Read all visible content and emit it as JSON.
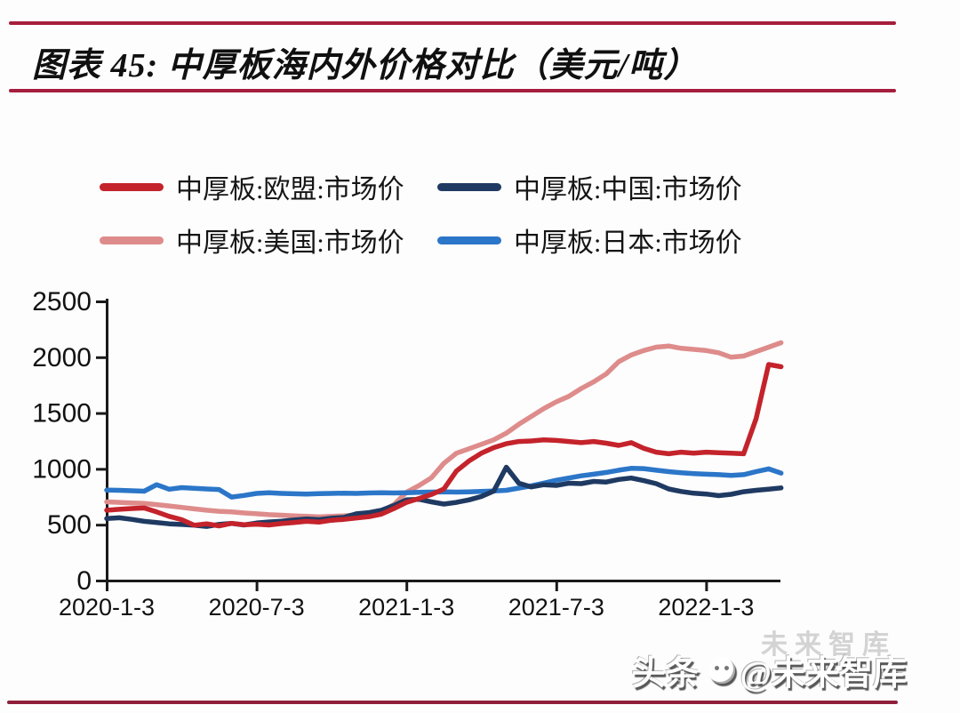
{
  "page": {
    "background": "#fdfdfe"
  },
  "header": {
    "title": "图表 45: 中厚板海内外价格对比（美元/吨）",
    "rule_color_top": "#a61e3c",
    "rule_color_mid": "#a61e3c",
    "rule_color_bottom": "#8f1f3a"
  },
  "legend": [
    {
      "id": "eu",
      "label": "中厚板:欧盟:市场价",
      "color": "#c4232b"
    },
    {
      "id": "china",
      "label": "中厚板:中国:市场价",
      "color": "#1f3a62"
    },
    {
      "id": "us",
      "label": "中厚板:美国:市场价",
      "color": "#de8c8b"
    },
    {
      "id": "japan",
      "label": "中厚板:日本:市场价",
      "color": "#2b76c8"
    }
  ],
  "chart_data": {
    "type": "line",
    "title": "中厚板海内外价格对比",
    "unit": "美元/吨",
    "xlabel": "",
    "ylabel": "",
    "ylim": [
      0,
      2500
    ],
    "y_ticks": [
      0,
      500,
      1000,
      1500,
      2000,
      2500
    ],
    "x_tick_labels": [
      "2020-1-3",
      "2020-7-3",
      "2021-1-3",
      "2021-7-3",
      "2022-1-3"
    ],
    "x_tick_positions_months": [
      0,
      6,
      12,
      18,
      24
    ],
    "x_axis_note": "x values are months since 2020-01-03, weekly-style series sampled every half month",
    "grid": false,
    "legend_position": "top",
    "x": [
      0,
      0.5,
      1,
      1.5,
      2,
      2.5,
      3,
      3.5,
      4,
      4.5,
      5,
      5.5,
      6,
      6.5,
      7,
      7.5,
      8,
      8.5,
      9,
      9.5,
      10,
      10.5,
      11,
      11.5,
      12,
      12.5,
      13,
      13.5,
      14,
      14.5,
      15,
      15.5,
      16,
      16.5,
      17,
      17.5,
      18,
      18.5,
      19,
      19.5,
      20,
      20.5,
      21,
      21.5,
      22,
      22.5,
      23,
      23.5,
      24,
      24.5,
      25,
      25.5,
      26,
      26.5,
      27
    ],
    "series": [
      {
        "id": "eu",
        "name": "中厚板:欧盟:市场价",
        "color": "#c4232b",
        "values": [
          630,
          638,
          645,
          650,
          615,
          575,
          545,
          495,
          508,
          490,
          512,
          500,
          505,
          498,
          510,
          520,
          530,
          523,
          540,
          548,
          560,
          572,
          595,
          645,
          700,
          735,
          770,
          820,
          980,
          1070,
          1140,
          1190,
          1225,
          1245,
          1250,
          1260,
          1255,
          1245,
          1235,
          1245,
          1230,
          1210,
          1235,
          1185,
          1150,
          1135,
          1150,
          1140,
          1150,
          1145,
          1140,
          1135,
          1450,
          1935,
          1915
        ]
      },
      {
        "id": "china",
        "name": "中厚板:中国:市场价",
        "color": "#1f3a62",
        "values": [
          555,
          562,
          548,
          530,
          520,
          508,
          502,
          495,
          485,
          502,
          512,
          498,
          515,
          525,
          532,
          542,
          552,
          545,
          558,
          565,
          598,
          608,
          630,
          672,
          722,
          728,
          705,
          685,
          700,
          722,
          752,
          802,
          1015,
          872,
          838,
          858,
          852,
          872,
          868,
          888,
          882,
          905,
          918,
          895,
          868,
          820,
          798,
          782,
          775,
          760,
          772,
          795,
          808,
          818,
          830
        ]
      },
      {
        "id": "us",
        "name": "中厚板:美国:市场价",
        "color": "#de8c8b",
        "values": [
          705,
          700,
          695,
          690,
          680,
          668,
          655,
          642,
          630,
          620,
          615,
          605,
          598,
          590,
          585,
          580,
          575,
          570,
          575,
          580,
          588,
          595,
          620,
          680,
          790,
          850,
          920,
          1050,
          1140,
          1180,
          1220,
          1260,
          1320,
          1400,
          1470,
          1540,
          1600,
          1650,
          1720,
          1780,
          1850,
          1960,
          2020,
          2060,
          2090,
          2100,
          2080,
          2070,
          2060,
          2040,
          2000,
          2010,
          2050,
          2090,
          2130
        ]
      },
      {
        "id": "japan",
        "name": "中厚板:日本:市场价",
        "color": "#2b76c8",
        "values": [
          810,
          808,
          804,
          800,
          858,
          818,
          832,
          826,
          820,
          815,
          748,
          762,
          780,
          786,
          780,
          777,
          774,
          778,
          780,
          783,
          780,
          784,
          786,
          784,
          786,
          790,
          792,
          794,
          792,
          794,
          798,
          802,
          808,
          828,
          848,
          872,
          898,
          918,
          938,
          952,
          968,
          988,
          1005,
          1002,
          988,
          975,
          965,
          958,
          952,
          948,
          942,
          948,
          975,
          1000,
          962
        ]
      }
    ]
  },
  "watermark": {
    "prefix": "头条",
    "handle": "@未来智库",
    "ghost": "未来智库"
  }
}
